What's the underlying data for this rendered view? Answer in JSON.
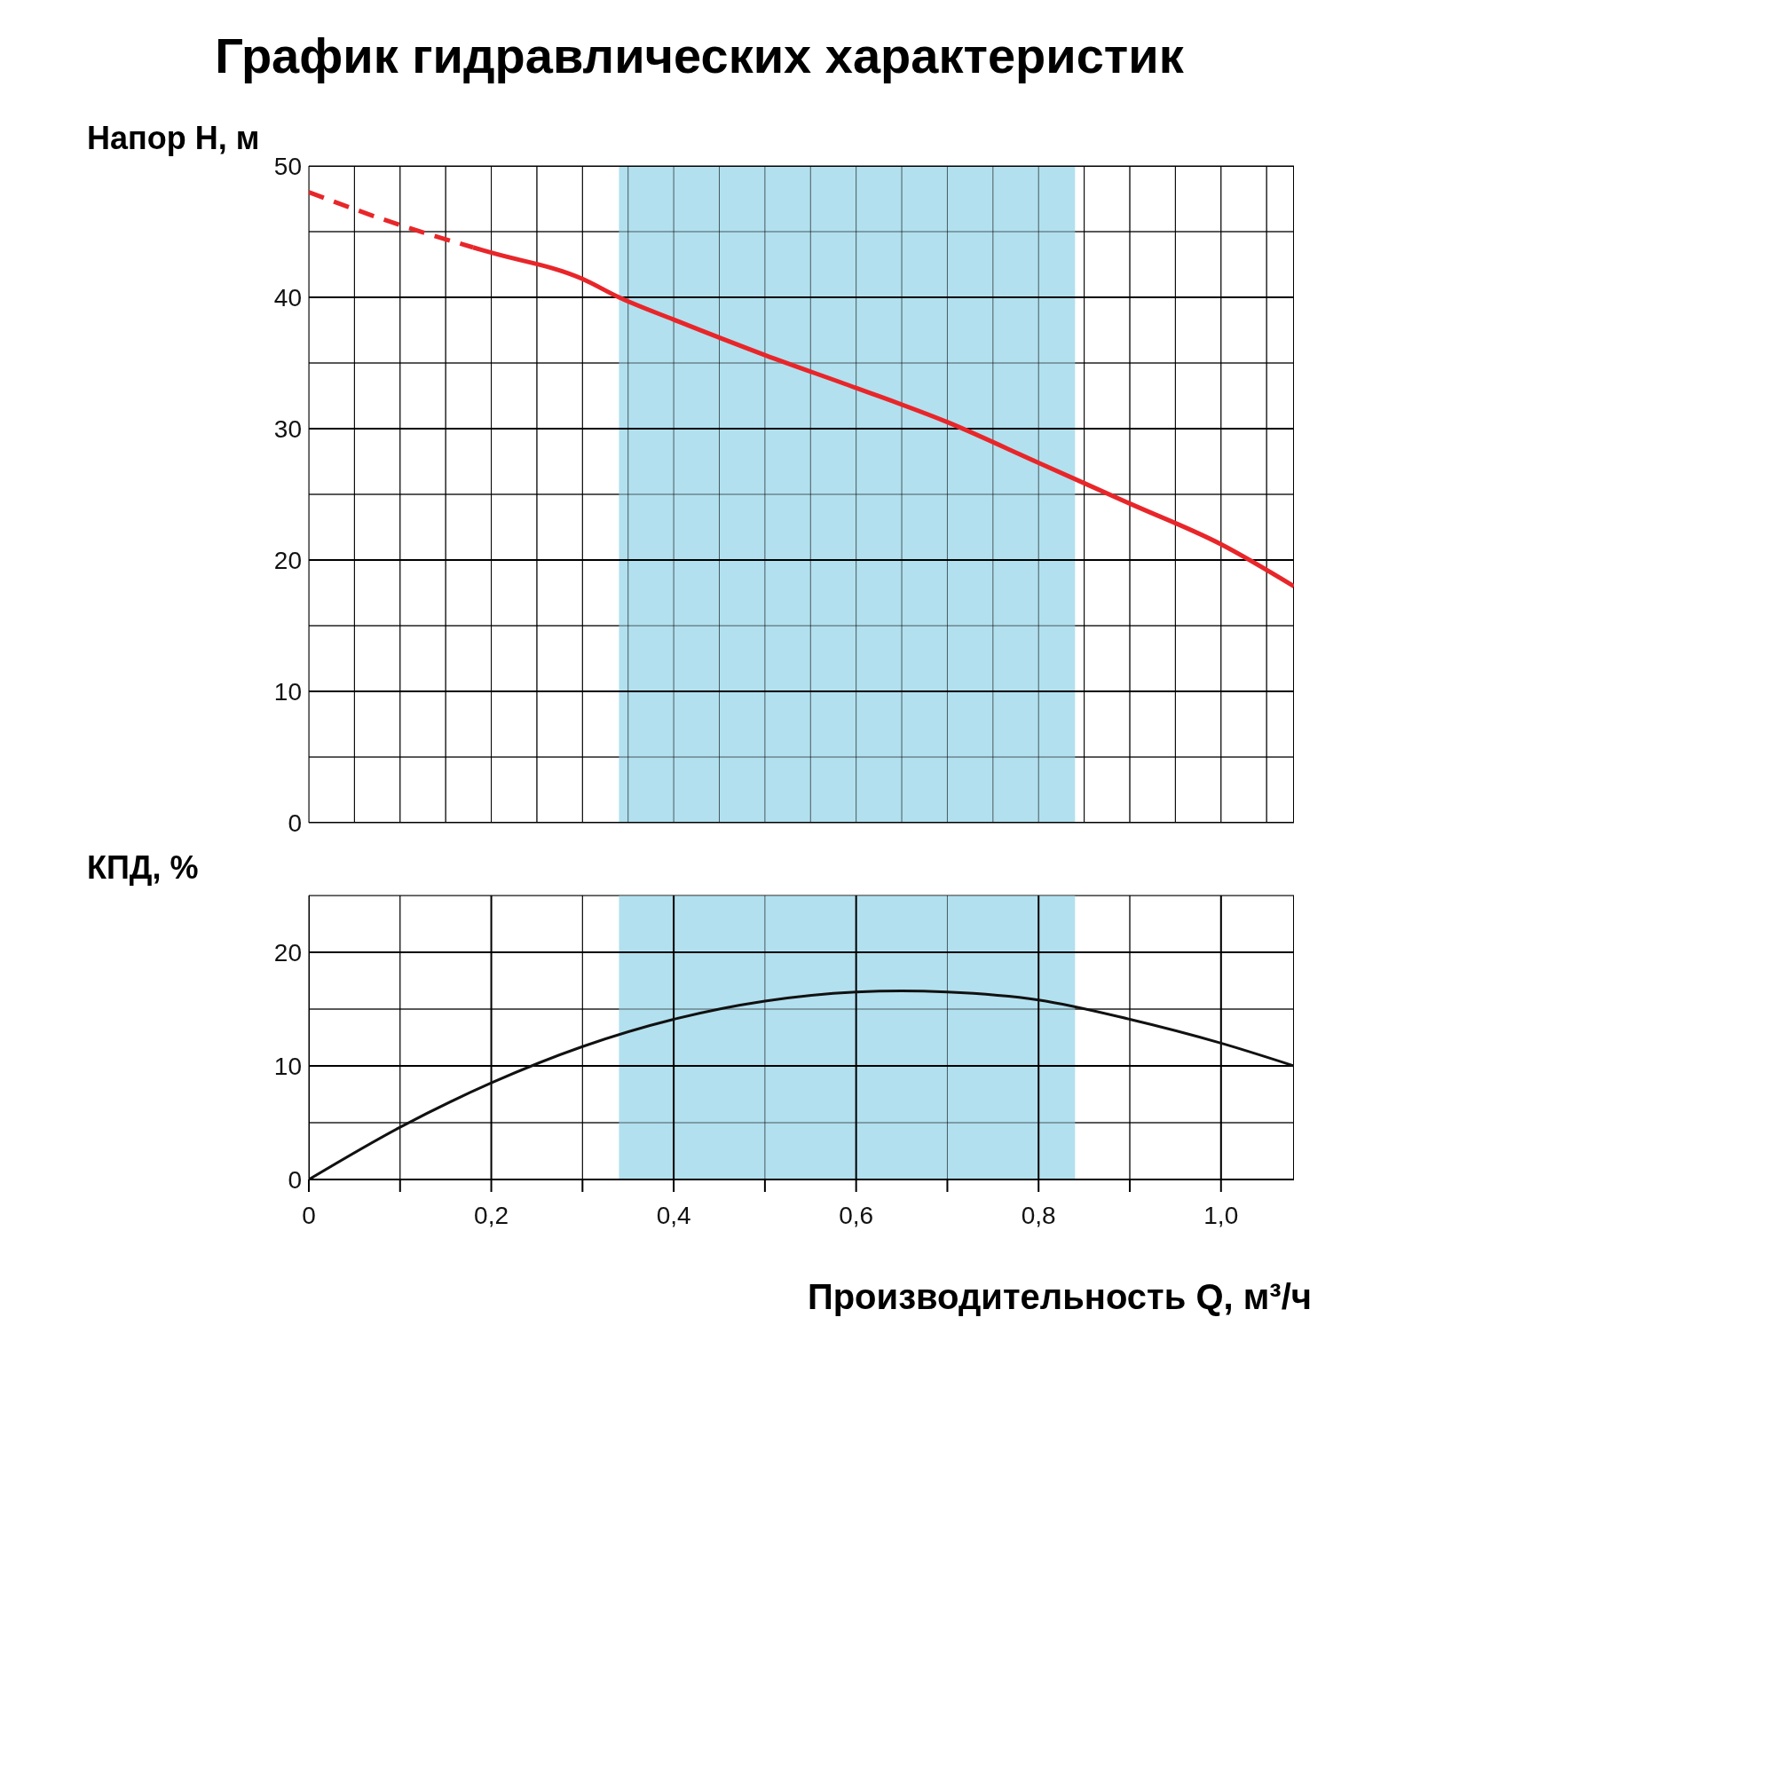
{
  "chart_data": [
    {
      "type": "line",
      "title": "График гидравлических характеристик",
      "ylabel": "Напор H, м",
      "marker": "none",
      "grid": true,
      "tick_labels": "y",
      "xlim": [
        0,
        1.08
      ],
      "xticks": [
        {
          "value": 0,
          "label": null
        },
        {
          "value": 0.05,
          "label": null
        },
        {
          "value": 0.1,
          "label": null
        },
        {
          "value": 0.15,
          "label": null
        },
        {
          "value": 0.2,
          "label": null
        },
        {
          "value": 0.25,
          "label": null
        },
        {
          "value": 0.3,
          "label": null
        },
        {
          "value": 0.35,
          "label": null
        },
        {
          "value": 0.4,
          "label": null
        },
        {
          "value": 0.45,
          "label": null
        },
        {
          "value": 0.5,
          "label": null
        },
        {
          "value": 0.55,
          "label": null
        },
        {
          "value": 0.6,
          "label": null
        },
        {
          "value": 0.65,
          "label": null
        },
        {
          "value": 0.7,
          "label": null
        },
        {
          "value": 0.75,
          "label": null
        },
        {
          "value": 0.8,
          "label": null
        },
        {
          "value": 0.85,
          "label": null
        },
        {
          "value": 0.9,
          "label": null
        },
        {
          "value": 0.95,
          "label": null
        },
        {
          "value": 1.0,
          "label": null
        },
        {
          "value": 1.05,
          "label": null
        }
      ],
      "ylim": [
        0,
        50
      ],
      "yticks": [
        0,
        {
          "value": 5,
          "label": null
        },
        10,
        {
          "value": 15,
          "label": null
        },
        20,
        {
          "value": 25,
          "label": null
        },
        30,
        {
          "value": 35,
          "label": null
        },
        40,
        {
          "value": 45,
          "label": null
        },
        50
      ],
      "bands": [
        {
          "axis": "x",
          "from": 0.34,
          "to": 0.84,
          "color": "#b2e0ee"
        }
      ],
      "series": [
        {
          "color": "#e8262a",
          "line_style": "dashed",
          "x": [
            0,
            0.1,
            0.18
          ],
          "values": [
            48,
            45.5,
            43.8
          ]
        },
        {
          "color": "#e8262a",
          "line_style": "solid",
          "x": [
            0.18,
            0.2,
            0.3,
            0.34,
            0.4,
            0.5,
            0.6,
            0.7,
            0.8,
            0.9,
            1.0,
            1.08
          ],
          "values": [
            43.8,
            43.4,
            41.4,
            40.0,
            38.3,
            35.6,
            33.1,
            30.5,
            27.4,
            24.3,
            21.2,
            18.0
          ]
        }
      ]
    },
    {
      "type": "line",
      "ylabel": "КПД, %",
      "xlabel": "Производительность Q, м³/ч",
      "marker": "none",
      "grid": true,
      "xlim": [
        0,
        1.08
      ],
      "xticks": [
        0,
        {
          "value": 0.1,
          "label": null
        },
        {
          "value": 0.2,
          "label": "0,2"
        },
        {
          "value": 0.3,
          "label": null
        },
        {
          "value": 0.4,
          "label": "0,4"
        },
        {
          "value": 0.5,
          "label": null
        },
        {
          "value": 0.6,
          "label": "0,6"
        },
        {
          "value": 0.7,
          "label": null
        },
        {
          "value": 0.8,
          "label": "0,8"
        },
        {
          "value": 0.9,
          "label": null
        },
        {
          "value": 1.0,
          "label": "1,0"
        }
      ],
      "ylim": [
        0,
        25
      ],
      "yticks": [
        0,
        {
          "value": 5,
          "label": null
        },
        10,
        {
          "value": 15,
          "label": null
        },
        20,
        {
          "value": 25,
          "label": null
        }
      ],
      "bands": [
        {
          "axis": "x",
          "from": 0.34,
          "to": 0.84,
          "color": "#b2e0ee"
        }
      ],
      "series": [
        {
          "color": "#111111",
          "line_style": "solid",
          "x": [
            0,
            0.1,
            0.2,
            0.3,
            0.4,
            0.5,
            0.6,
            0.65,
            0.7,
            0.8,
            0.9,
            1.0,
            1.08
          ],
          "values": [
            0,
            4.6,
            8.5,
            11.7,
            14.1,
            15.7,
            16.5,
            16.6,
            16.5,
            15.8,
            14.1,
            12.0,
            10.0
          ]
        }
      ]
    }
  ]
}
